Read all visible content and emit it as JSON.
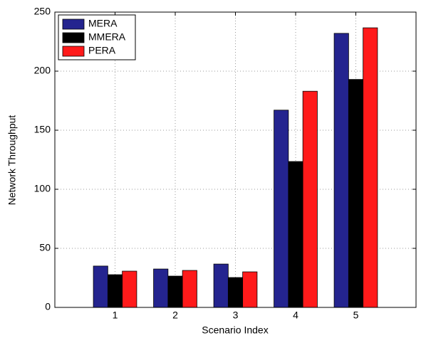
{
  "chart_data": {
    "type": "bar",
    "x_label": "Scenario Index",
    "y_label": "Network Throughput",
    "x": [
      1,
      2,
      3,
      4,
      5
    ],
    "series": [
      {
        "name": "MERA",
        "color": "#24248f",
        "values": [
          35,
          32.5,
          36.7,
          167,
          232
        ]
      },
      {
        "name": "MMERA",
        "color": "#000000",
        "values": [
          27.7,
          26.5,
          25.3,
          123.5,
          193
        ]
      },
      {
        "name": "PERA",
        "color": "#ff1a1a",
        "values": [
          30.7,
          31.3,
          30.1,
          183,
          236.7
        ]
      }
    ],
    "xlim": [
      0,
      6
    ],
    "xticks": [
      1,
      2,
      3,
      4,
      5
    ],
    "ylim": [
      0,
      250
    ],
    "yticks": [
      0,
      50,
      100,
      150,
      200,
      250
    ],
    "grid": true,
    "legend": "upper-left"
  }
}
